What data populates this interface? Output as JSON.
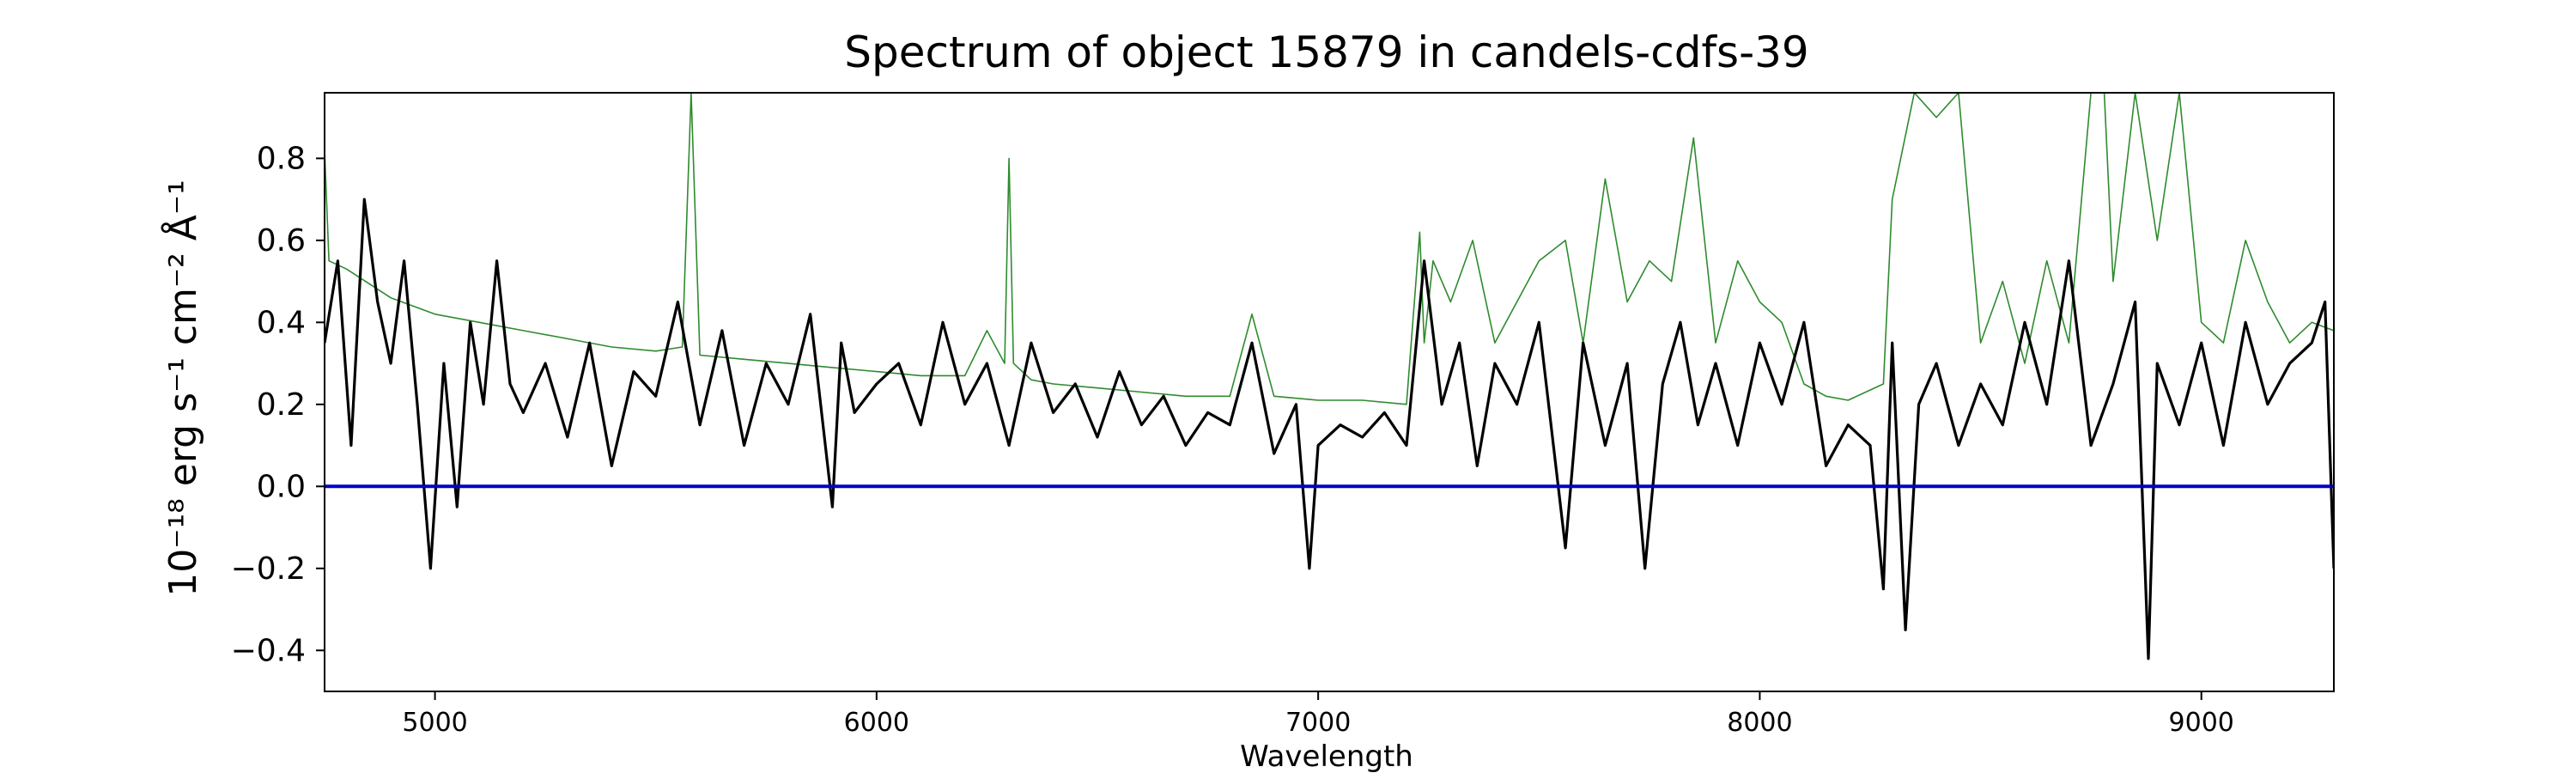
{
  "chart_data": {
    "type": "line",
    "title": "Spectrum of object 15879 in candels-cdfs-39",
    "xlabel": "Wavelength",
    "ylabel": "10⁻¹⁸ erg s⁻¹ cm⁻² Å⁻¹",
    "xlim": [
      4750,
      9300
    ],
    "ylim": [
      -0.5,
      0.96
    ],
    "xticks": [
      5000,
      6000,
      7000,
      8000,
      9000
    ],
    "yticks": [
      -0.4,
      -0.2,
      0.0,
      0.2,
      0.4,
      0.6,
      0.8
    ],
    "ytick_labels": [
      "−0.4",
      "−0.2",
      "0.0",
      "0.2",
      "0.4",
      "0.6",
      "0.8"
    ],
    "grid": false,
    "legend": "none",
    "series": [
      {
        "role": "error",
        "color": "#2e8b2e",
        "x": [
          4750,
          4760,
          4800,
          4900,
          5000,
          5100,
          5200,
          5300,
          5400,
          5500,
          5560,
          5580,
          5600,
          5700,
          5800,
          5900,
          6000,
          6100,
          6200,
          6250,
          6290,
          6300,
          6310,
          6350,
          6400,
          6500,
          6600,
          6700,
          6800,
          6850,
          6900,
          7000,
          7100,
          7200,
          7230,
          7240,
          7260,
          7300,
          7350,
          7400,
          7500,
          7560,
          7600,
          7650,
          7700,
          7750,
          7800,
          7850,
          7900,
          7950,
          8000,
          8050,
          8100,
          8150,
          8200,
          8280,
          8300,
          8350,
          8400,
          8450,
          8500,
          8550,
          8600,
          8650,
          8700,
          8750,
          8780,
          8800,
          8850,
          8900,
          8950,
          9000,
          9050,
          9100,
          9150,
          9200,
          9250,
          9300
        ],
        "values": [
          0.82,
          0.55,
          0.53,
          0.46,
          0.42,
          0.4,
          0.38,
          0.36,
          0.34,
          0.33,
          0.34,
          0.96,
          0.32,
          0.31,
          0.3,
          0.29,
          0.28,
          0.27,
          0.27,
          0.38,
          0.3,
          0.8,
          0.3,
          0.26,
          0.25,
          0.24,
          0.23,
          0.22,
          0.22,
          0.42,
          0.22,
          0.21,
          0.21,
          0.2,
          0.62,
          0.35,
          0.55,
          0.45,
          0.6,
          0.35,
          0.55,
          0.6,
          0.35,
          0.75,
          0.45,
          0.55,
          0.5,
          0.85,
          0.35,
          0.55,
          0.45,
          0.4,
          0.25,
          0.22,
          0.21,
          0.25,
          0.7,
          0.96,
          0.9,
          0.96,
          0.35,
          0.5,
          0.3,
          0.55,
          0.35,
          0.96,
          0.96,
          0.5,
          0.96,
          0.6,
          0.96,
          0.4,
          0.35,
          0.6,
          0.45,
          0.35,
          0.4,
          0.38
        ]
      },
      {
        "role": "flux",
        "color": "#000000",
        "x": [
          4750,
          4780,
          4810,
          4840,
          4870,
          4900,
          4930,
          4960,
          4990,
          5020,
          5050,
          5080,
          5110,
          5140,
          5170,
          5200,
          5250,
          5300,
          5350,
          5400,
          5450,
          5500,
          5550,
          5600,
          5650,
          5700,
          5750,
          5800,
          5850,
          5900,
          5920,
          5950,
          6000,
          6050,
          6100,
          6150,
          6200,
          6250,
          6300,
          6350,
          6400,
          6450,
          6500,
          6550,
          6600,
          6650,
          6700,
          6750,
          6800,
          6850,
          6900,
          6950,
          6980,
          7000,
          7050,
          7100,
          7150,
          7200,
          7240,
          7280,
          7320,
          7360,
          7400,
          7450,
          7500,
          7560,
          7600,
          7650,
          7700,
          7740,
          7780,
          7820,
          7860,
          7900,
          7950,
          8000,
          8050,
          8100,
          8150,
          8200,
          8250,
          8280,
          8300,
          8330,
          8360,
          8400,
          8450,
          8500,
          8550,
          8600,
          8650,
          8700,
          8750,
          8800,
          8850,
          8880,
          8900,
          8950,
          9000,
          9050,
          9100,
          9150,
          9200,
          9250,
          9280,
          9300
        ],
        "values": [
          0.35,
          0.55,
          0.1,
          0.7,
          0.45,
          0.3,
          0.55,
          0.2,
          -0.2,
          0.3,
          -0.05,
          0.4,
          0.2,
          0.55,
          0.25,
          0.18,
          0.3,
          0.12,
          0.35,
          0.05,
          0.28,
          0.22,
          0.45,
          0.15,
          0.38,
          0.1,
          0.3,
          0.2,
          0.42,
          -0.05,
          0.35,
          0.18,
          0.25,
          0.3,
          0.15,
          0.4,
          0.2,
          0.3,
          0.1,
          0.35,
          0.18,
          0.25,
          0.12,
          0.28,
          0.15,
          0.22,
          0.1,
          0.18,
          0.15,
          0.35,
          0.08,
          0.2,
          -0.2,
          0.1,
          0.15,
          0.12,
          0.18,
          0.1,
          0.55,
          0.2,
          0.35,
          0.05,
          0.3,
          0.2,
          0.4,
          -0.15,
          0.35,
          0.1,
          0.3,
          -0.2,
          0.25,
          0.4,
          0.15,
          0.3,
          0.1,
          0.35,
          0.2,
          0.4,
          0.05,
          0.15,
          0.1,
          -0.25,
          0.35,
          -0.35,
          0.2,
          0.3,
          0.1,
          0.25,
          0.15,
          0.4,
          0.2,
          0.55,
          0.1,
          0.25,
          0.45,
          -0.42,
          0.3,
          0.15,
          0.35,
          0.1,
          0.4,
          0.2,
          0.3,
          0.35,
          0.45,
          -0.2
        ]
      },
      {
        "role": "zero",
        "color": "#0000cc",
        "x": [
          4750,
          9300
        ],
        "values": [
          0.0,
          0.0
        ]
      }
    ]
  }
}
